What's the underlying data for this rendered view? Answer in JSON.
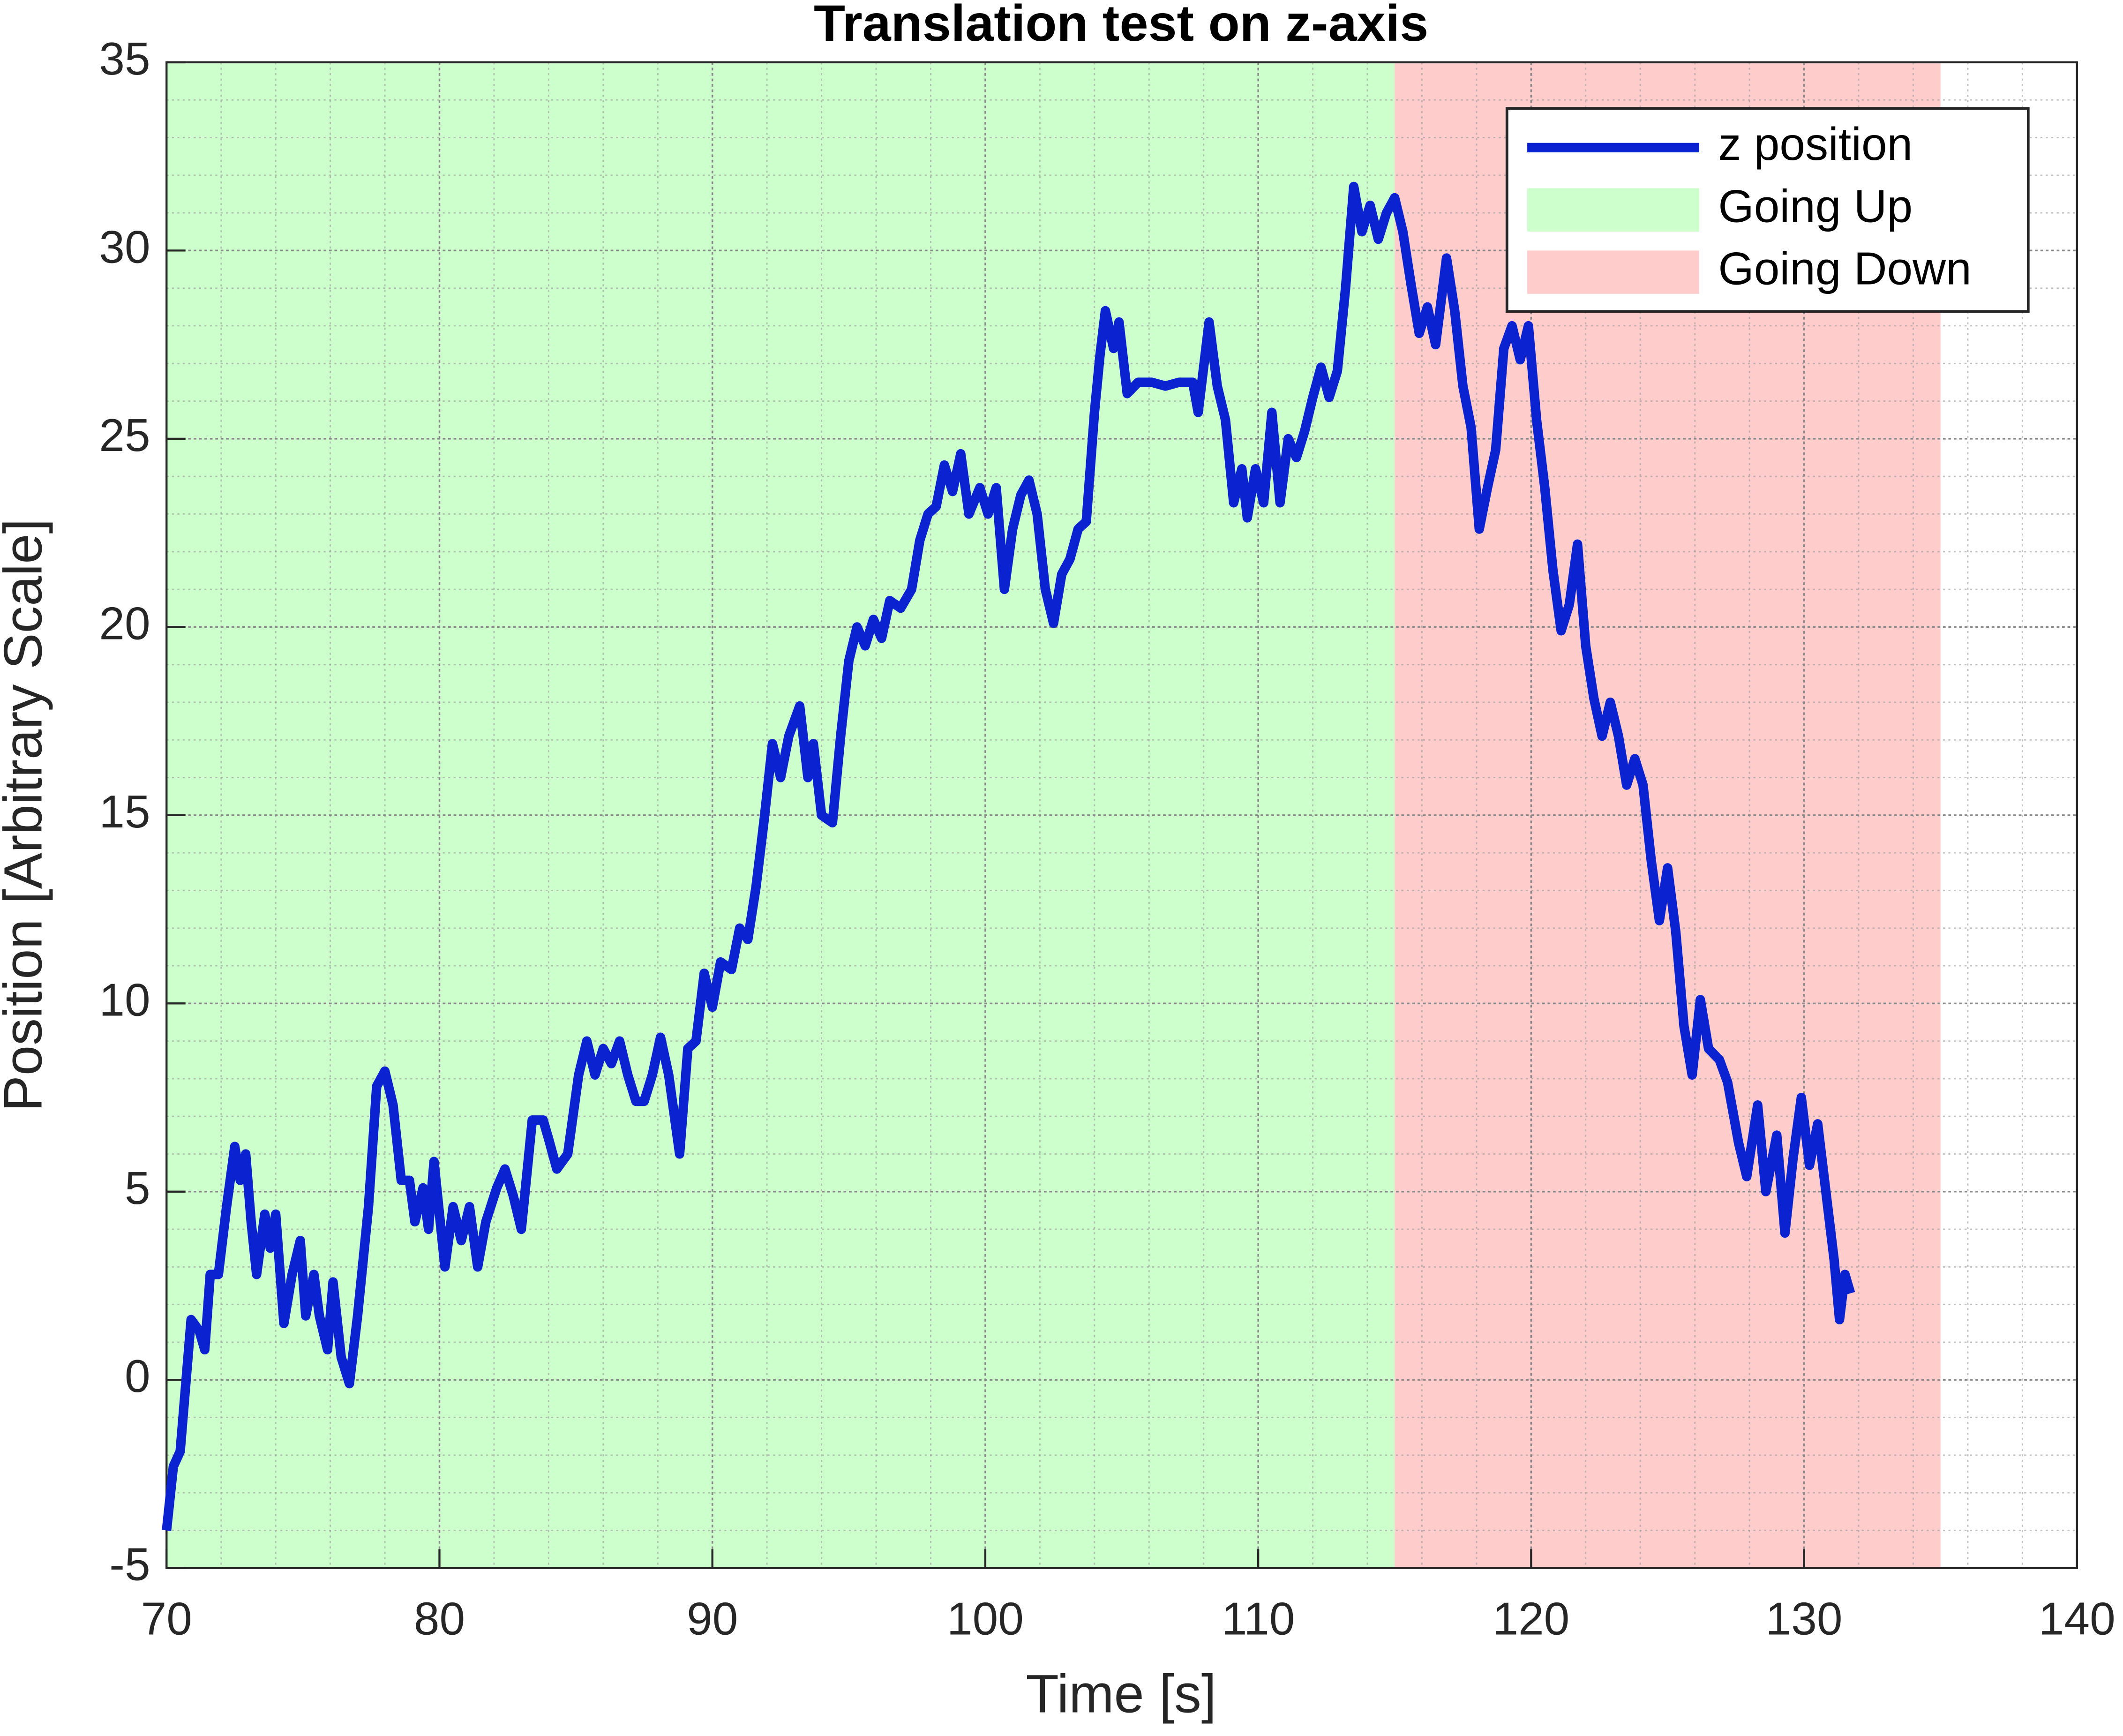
{
  "chart_data": {
    "type": "line",
    "title": "Translation test on z-axis",
    "x_label": "Time [s]",
    "y_label": "Position [Arbitrary Scale]",
    "xlim": [
      70,
      140
    ],
    "ylim": [
      -5,
      35
    ],
    "xticks": [
      70,
      80,
      90,
      100,
      110,
      120,
      130,
      140
    ],
    "yticks": [
      -5,
      0,
      5,
      10,
      15,
      20,
      25,
      30,
      35
    ],
    "grid": true,
    "minor_grid": true,
    "legend": "northeast",
    "regions": [
      {
        "name": "Going Up",
        "xlim": [
          70,
          115
        ],
        "color": "#ccffcc"
      },
      {
        "name": "Going Down",
        "xlim": [
          115,
          135
        ],
        "color": "#ffcccc"
      }
    ],
    "x": [
      70.0,
      70.25,
      70.5,
      70.9,
      71.2,
      71.4,
      71.6,
      71.9,
      72.2,
      72.5,
      72.7,
      72.9,
      73.1,
      73.3,
      73.6,
      73.8,
      74.0,
      74.3,
      74.6,
      74.9,
      75.1,
      75.4,
      75.6,
      75.9,
      76.1,
      76.4,
      76.7,
      77.0,
      77.4,
      77.7,
      78.0,
      78.3,
      78.6,
      78.9,
      79.1,
      79.4,
      79.6,
      79.8,
      80.2,
      80.5,
      80.8,
      81.1,
      81.4,
      81.7,
      82.1,
      82.4,
      82.7,
      83.0,
      83.4,
      83.8,
      84.0,
      84.3,
      84.7,
      85.1,
      85.4,
      85.7,
      86.0,
      86.3,
      86.6,
      86.9,
      87.2,
      87.5,
      87.8,
      88.1,
      88.4,
      88.8,
      89.1,
      89.4,
      89.7,
      90.0,
      90.3,
      90.7,
      91.0,
      91.3,
      91.6,
      91.9,
      92.2,
      92.5,
      92.8,
      93.2,
      93.5,
      93.7,
      94.0,
      94.4,
      94.7,
      95.0,
      95.3,
      95.6,
      95.9,
      96.2,
      96.5,
      96.9,
      97.3,
      97.6,
      97.9,
      98.2,
      98.5,
      98.8,
      99.1,
      99.4,
      99.8,
      100.1,
      100.4,
      100.7,
      101.0,
      101.3,
      101.6,
      101.9,
      102.2,
      102.5,
      102.8,
      103.1,
      103.4,
      103.7,
      104.0,
      104.2,
      104.4,
      104.7,
      104.9,
      105.2,
      105.6,
      106.1,
      106.6,
      107.1,
      107.6,
      107.8,
      108.2,
      108.5,
      108.8,
      109.1,
      109.4,
      109.6,
      109.9,
      110.2,
      110.5,
      110.8,
      111.1,
      111.4,
      111.7,
      112.0,
      112.3,
      112.6,
      112.9,
      113.2,
      113.5,
      113.8,
      114.1,
      114.4,
      114.7,
      115.0,
      115.3,
      115.6,
      115.9,
      116.2,
      116.5,
      116.9,
      117.2,
      117.5,
      117.8,
      118.1,
      118.4,
      118.7,
      119.0,
      119.3,
      119.6,
      119.9,
      120.2,
      120.5,
      120.8,
      121.1,
      121.4,
      121.7,
      122.0,
      122.3,
      122.6,
      122.9,
      123.2,
      123.5,
      123.8,
      124.1,
      124.4,
      124.7,
      125.0,
      125.3,
      125.6,
      125.9,
      126.2,
      126.5,
      126.9,
      127.2,
      127.6,
      127.9,
      128.3,
      128.6,
      129.0,
      129.3,
      129.6,
      129.9,
      130.2,
      130.5,
      130.8,
      131.1,
      131.3,
      131.5,
      131.7
    ],
    "series": [
      {
        "name": "z position",
        "color": "#0a22d0",
        "values": [
          -4.0,
          -2.3,
          -1.9,
          1.6,
          1.3,
          0.8,
          2.8,
          2.8,
          4.6,
          6.2,
          5.3,
          6.0,
          4.2,
          2.8,
          4.4,
          3.5,
          4.4,
          1.5,
          2.8,
          3.7,
          1.7,
          2.8,
          1.7,
          0.8,
          2.6,
          0.6,
          -0.1,
          1.7,
          4.6,
          7.8,
          8.2,
          7.3,
          5.3,
          5.3,
          4.2,
          5.1,
          4.0,
          5.8,
          3.0,
          4.6,
          3.7,
          4.6,
          3.0,
          4.2,
          5.1,
          5.6,
          4.9,
          4.0,
          6.9,
          6.9,
          6.4,
          5.6,
          6.0,
          8.1,
          9.0,
          8.1,
          8.8,
          8.4,
          9.0,
          8.1,
          7.4,
          7.4,
          8.1,
          9.1,
          8.1,
          6.0,
          8.8,
          9.0,
          10.8,
          9.9,
          11.1,
          10.9,
          12.0,
          11.7,
          13.1,
          14.9,
          16.9,
          16.0,
          17.1,
          17.9,
          16.0,
          16.9,
          15.0,
          14.8,
          17.1,
          19.1,
          20.0,
          19.5,
          20.2,
          19.7,
          20.7,
          20.5,
          21.0,
          22.3,
          23.0,
          23.2,
          24.3,
          23.6,
          24.6,
          23.0,
          23.7,
          23.0,
          23.7,
          21.0,
          22.6,
          23.5,
          23.9,
          23.0,
          21.0,
          20.1,
          21.4,
          21.8,
          22.6,
          22.8,
          25.7,
          27.2,
          28.4,
          27.4,
          28.1,
          26.2,
          26.5,
          26.5,
          26.4,
          26.5,
          26.5,
          25.7,
          28.1,
          26.4,
          25.5,
          23.3,
          24.2,
          22.9,
          24.2,
          23.3,
          25.7,
          23.3,
          25.0,
          24.5,
          25.2,
          26.1,
          26.9,
          26.1,
          26.8,
          29.0,
          31.7,
          30.5,
          31.2,
          30.3,
          31.0,
          31.4,
          30.5,
          29.1,
          27.8,
          28.5,
          27.5,
          29.8,
          28.4,
          26.4,
          25.3,
          22.6,
          23.7,
          24.7,
          27.4,
          28.0,
          27.1,
          28.0,
          25.5,
          23.7,
          21.5,
          19.9,
          20.6,
          22.2,
          19.5,
          18.1,
          17.1,
          18.0,
          17.1,
          15.8,
          16.5,
          15.8,
          13.8,
          12.2,
          13.6,
          11.9,
          9.4,
          8.1,
          10.1,
          8.8,
          8.5,
          7.9,
          6.3,
          5.4,
          7.3,
          5.0,
          6.5,
          3.9,
          5.9,
          7.5,
          5.7,
          6.8,
          5.0,
          3.2,
          1.6,
          2.8,
          2.3
        ]
      }
    ]
  }
}
